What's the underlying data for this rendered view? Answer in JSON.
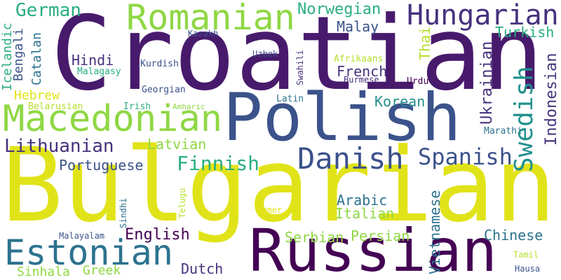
{
  "palette": {
    "purple": "#481a6c",
    "navy": "#3b528b",
    "teal": "#2c728e",
    "cyan": "#21908d",
    "green": "#28ae80",
    "lime": "#8fd744",
    "yellow": "#e1e319",
    "darkpurple": "#440154",
    "indigo": "#46327e",
    "olive": "#b5de2b"
  },
  "words": {
    "croatian": "Croatian",
    "bulgarian": "Bulgarian",
    "polish": "Polish",
    "russian": "Russian",
    "macedonian": "Macedonian",
    "romanian": "Romanian",
    "hungarian": "Hungarian",
    "estonian": "Estonian",
    "danish": "Danish",
    "swedish": "Swedish",
    "spanish": "Spanish",
    "lithuanian": "Lithuanian",
    "finnish": "Finnish",
    "german": "German",
    "norwegian": "Norwegian",
    "ukrainian": "Ukrainian",
    "indonesian": "Indonesian",
    "vietnamese": "Vietnamese",
    "english": "English",
    "chinese": "Chinese",
    "korean": "Korean",
    "french": "French",
    "hindi": "Hindi",
    "latvian": "Latvian",
    "portuguese": "Portuguese",
    "arabic": "Arabic",
    "italian": "Italian",
    "serbian": "Serbian",
    "persian": "Persian",
    "turkish": "Turkish",
    "malay": "Malay",
    "dutch": "Dutch",
    "hebrew": "Hebrew",
    "sinhala": "Sinhala",
    "greek": "Greek",
    "bengali": "Bengali",
    "catalan": "Catalan",
    "icelandic": "Icelandic",
    "thai": "Thai",
    "malagasy": "Malagasy",
    "kurdish": "Kurdish",
    "georgian": "Georgian",
    "belarusian": "Belarusian",
    "irish": "Irish",
    "amharic": "Amharic",
    "latin": "Latin",
    "burmese": "Burmese",
    "urdu": "Urdu",
    "afrikaans": "Afrikaans",
    "uzbek": "Uzbek",
    "kazakh": "Kazakh",
    "swahili": "Swahili",
    "marathi": "Marathi",
    "telugu": "Telugu",
    "khmer": "Khmer",
    "sindhi": "Sindhi",
    "malayalam": "Malayalam",
    "tamil": "Tamil",
    "hausa": "Hausa"
  }
}
